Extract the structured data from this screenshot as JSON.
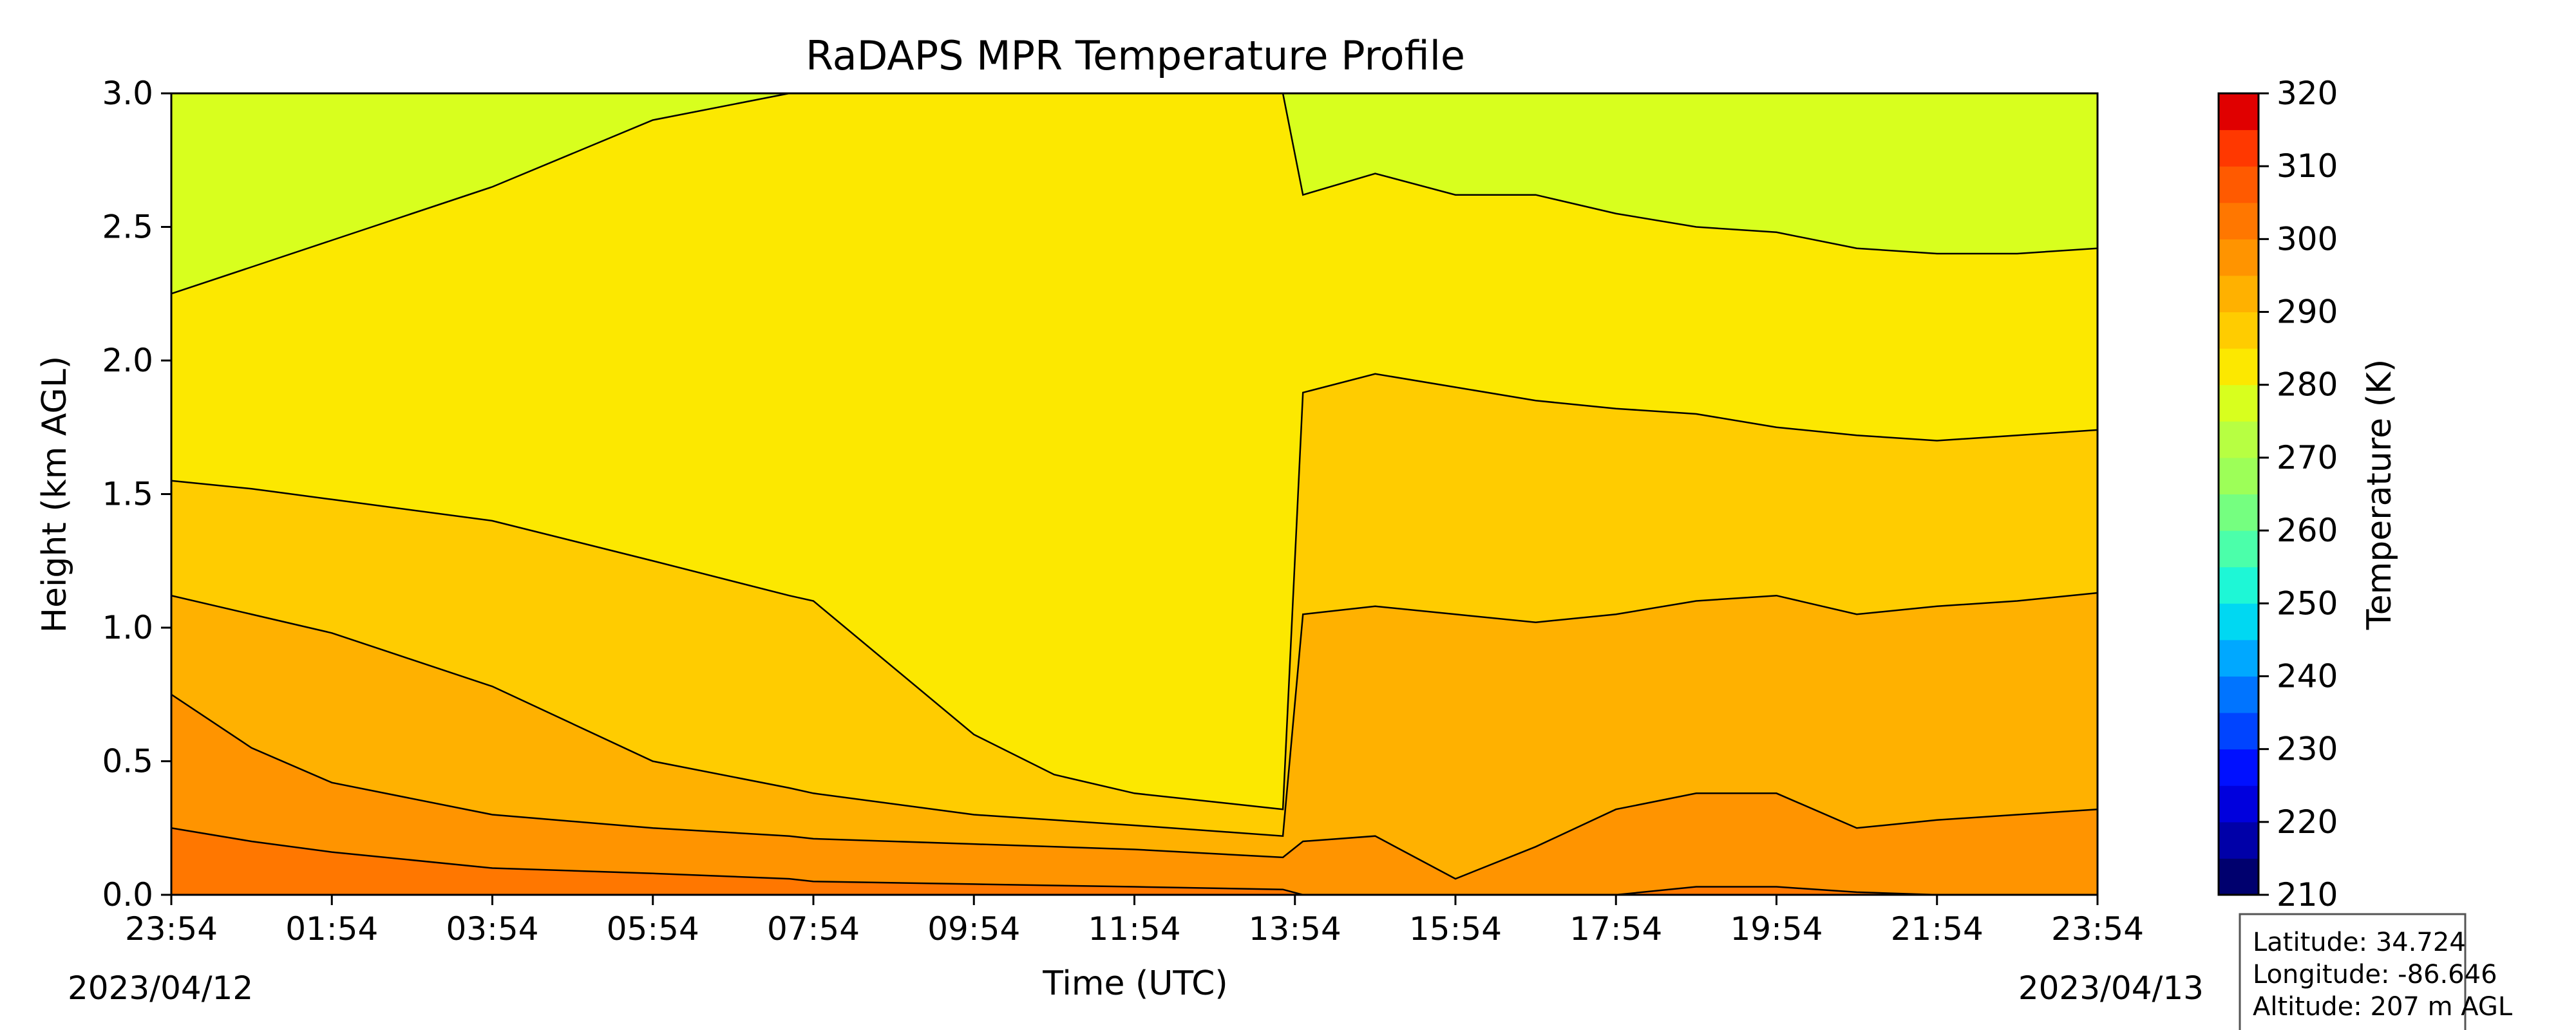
{
  "chart_data": {
    "type": "heatmap",
    "title": "RaDAPS MPR Temperature Profile",
    "xlabel": "Time (UTC)",
    "ylabel": "Height (km AGL)",
    "x_tick_labels": [
      "23:54",
      "01:54",
      "03:54",
      "05:54",
      "07:54",
      "09:54",
      "11:54",
      "13:54",
      "15:54",
      "17:54",
      "19:54",
      "21:54",
      "23:54"
    ],
    "start_date": "2023/04/12",
    "end_date": "2023/04/13",
    "y_tick_labels": [
      "0.0",
      "0.5",
      "1.0",
      "1.5",
      "2.0",
      "2.5",
      "3.0"
    ],
    "ylim": [
      0,
      3
    ],
    "x_range_hours": [
      0,
      24
    ],
    "colorbar": {
      "label": "Temperature (K)",
      "tick_labels": [
        "210",
        "220",
        "230",
        "240",
        "250",
        "260",
        "270",
        "280",
        "290",
        "300",
        "310",
        "320"
      ],
      "range": [
        210,
        320
      ],
      "levels": [
        210,
        215,
        220,
        225,
        230,
        235,
        240,
        245,
        250,
        255,
        260,
        265,
        270,
        275,
        280,
        285,
        290,
        295,
        300,
        305,
        310,
        315,
        320
      ],
      "colors": [
        "#00006e",
        "#0000a8",
        "#0000dd",
        "#0010ff",
        "#0044ff",
        "#0074ff",
        "#00a8ff",
        "#00d8f2",
        "#1ef7d6",
        "#4bffaa",
        "#75ff80",
        "#9dff58",
        "#b7ff42",
        "#d8ff1e",
        "#fce800",
        "#ffcc00",
        "#ffb100",
        "#ff9400",
        "#ff7700",
        "#ff5a00",
        "#ff3800",
        "#e00000",
        "#a80000",
        "#800000"
      ]
    },
    "contour_levels_K": [
      270,
      275,
      280,
      285,
      290,
      295
    ],
    "contour_heights_km": {
      "hours": [
        0,
        1,
        2,
        4,
        6,
        7.7,
        8,
        10,
        11,
        12,
        13.85,
        14.1,
        15,
        16,
        17,
        18,
        19,
        20,
        21,
        22,
        23,
        24
      ],
      "295": [
        0.25,
        0.2,
        0.16,
        0.1,
        0.08,
        0.06,
        0.05,
        0.04,
        0.035,
        0.03,
        0.02,
        0.0,
        0.0,
        0.0,
        0.0,
        0.0,
        0.03,
        0.03,
        0.01,
        0.0,
        0.0,
        0.0
      ],
      "290": [
        0.75,
        0.55,
        0.42,
        0.3,
        0.25,
        0.22,
        0.21,
        0.19,
        0.18,
        0.17,
        0.14,
        0.2,
        0.22,
        0.06,
        0.18,
        0.32,
        0.38,
        0.38,
        0.25,
        0.28,
        0.3,
        0.32
      ],
      "285": [
        1.12,
        1.05,
        0.98,
        0.78,
        0.5,
        0.4,
        0.38,
        0.3,
        0.28,
        0.26,
        0.22,
        1.05,
        1.08,
        1.05,
        1.02,
        1.05,
        1.1,
        1.12,
        1.05,
        1.08,
        1.1,
        1.13
      ],
      "280": [
        1.55,
        1.52,
        1.48,
        1.4,
        1.25,
        1.12,
        1.1,
        0.6,
        0.45,
        0.38,
        0.32,
        1.88,
        1.95,
        1.9,
        1.85,
        1.82,
        1.8,
        1.75,
        1.72,
        1.7,
        1.72,
        1.74
      ],
      "275": [
        2.25,
        2.35,
        2.45,
        2.65,
        2.9,
        3.0,
        3.0,
        3.0,
        3.0,
        3.0,
        3.0,
        2.62,
        2.7,
        2.62,
        2.62,
        2.55,
        2.5,
        2.48,
        2.42,
        2.4,
        2.4,
        2.42
      ]
    }
  },
  "info_box": {
    "latitude": "Latitude: 34.724",
    "longitude": "Longitude: -86.646",
    "altitude": "Altitude: 207 m AGL"
  }
}
